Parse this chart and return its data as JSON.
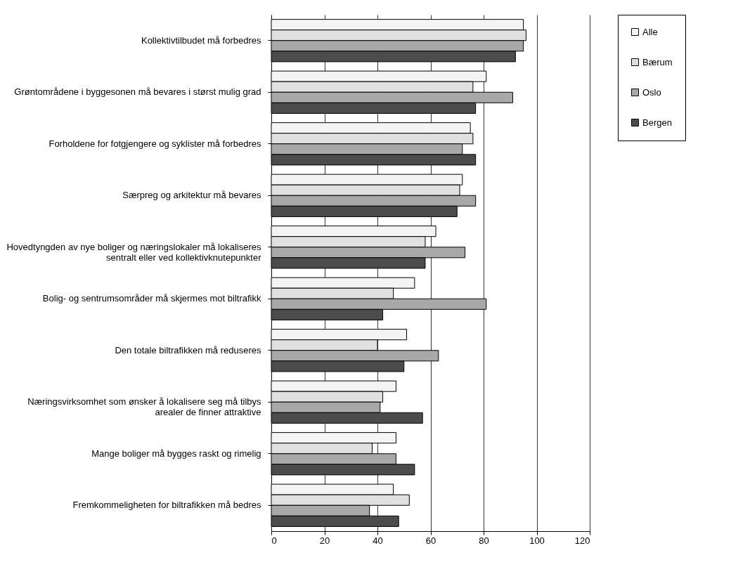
{
  "chart_data": {
    "type": "bar",
    "orientation": "horizontal",
    "categories": [
      "Kollektivtilbudet må forbedres",
      "Grøntområdene i byggesonen må bevares i størst mulig grad",
      "Forholdene for fotgjengere og syklister må forbedres",
      "Særpreg og arkitektur må bevares",
      "Hovedtyngden av nye boliger og næringslokaler må lokaliseres sentralt eller ved kollektivknutepunkter",
      "Bolig- og sentrumsområder må skjermes mot biltrafikk",
      "Den totale biltrafikken må reduseres",
      "Næringsvirksomhet som ønsker å lokalisere seg må tilbys arealer de finner attraktive",
      "Mange boliger må bygges raskt og rimelig",
      "Fremkommeligheten for biltrafikken må bedres"
    ],
    "series": [
      {
        "name": "Alle",
        "color": "#f4f4f4",
        "values": [
          95,
          81,
          75,
          72,
          62,
          54,
          51,
          47,
          47,
          46
        ]
      },
      {
        "name": "Bærum",
        "color": "#e0e0e0",
        "values": [
          96,
          76,
          76,
          71,
          58,
          46,
          40,
          42,
          38,
          52
        ]
      },
      {
        "name": "Oslo",
        "color": "#a8a8a8",
        "values": [
          95,
          91,
          72,
          77,
          73,
          81,
          63,
          41,
          47,
          37
        ]
      },
      {
        "name": "Bergen",
        "color": "#4c4c4c",
        "values": [
          92,
          77,
          77,
          70,
          58,
          42,
          50,
          57,
          54,
          48
        ]
      }
    ],
    "xlim": [
      0,
      120
    ],
    "xticks": [
      0,
      20,
      40,
      60,
      80,
      100,
      120
    ],
    "grid": "x",
    "legend": "right"
  }
}
